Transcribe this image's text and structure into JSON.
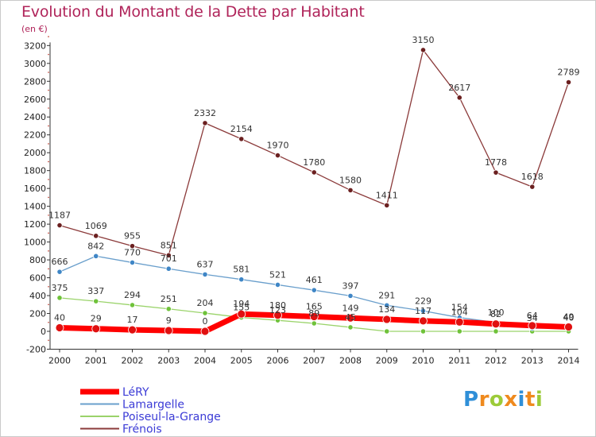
{
  "chart_data": {
    "type": "line",
    "title": "Evolution du Montant de la Dette par Habitant",
    "unit_label": "(en €)",
    "x": [
      2000,
      2001,
      2002,
      2003,
      2004,
      2005,
      2006,
      2007,
      2008,
      2009,
      2010,
      2011,
      2012,
      2013,
      2014
    ],
    "y_ticks": [
      -200,
      0,
      200,
      400,
      600,
      800,
      1000,
      1200,
      1400,
      1600,
      1800,
      2000,
      2200,
      2400,
      2600,
      2800,
      3000,
      3200
    ],
    "ylim": [
      -200,
      3200
    ],
    "grid": false,
    "legend_position": "bottom-left",
    "series": [
      {
        "name": "LéRY",
        "color": "#ff0000",
        "marker": "#e01010",
        "width": 7,
        "labels": true,
        "values": [
          40,
          29,
          17,
          9,
          0,
          194,
          180,
          165,
          149,
          134,
          117,
          104,
          82,
          64,
          49
        ],
        "label_texts": [
          "40",
          "29",
          "17",
          "9",
          "0",
          "194",
          "180",
          "165",
          "149",
          "134",
          "117",
          "104",
          "82",
          "64",
          "49"
        ]
      },
      {
        "name": "Lamargelle",
        "color": "#6a9fcc",
        "marker": "#3f86c6",
        "width": 1.3,
        "labels": true,
        "values": [
          666,
          842,
          770,
          701,
          637,
          581,
          521,
          461,
          397,
          291,
          229,
          154,
          100,
          34,
          40
        ],
        "label_texts": [
          "666",
          "842",
          "770",
          "701",
          "637",
          "581",
          "521",
          "461",
          "397",
          "291",
          "229",
          "154",
          "100",
          "34",
          "40"
        ]
      },
      {
        "name": "Poiseul-la-Grange",
        "color": "#9ad36a",
        "marker": "#6fc23a",
        "width": 1.3,
        "labels": true,
        "values": [
          375,
          337,
          294,
          251,
          204,
          155,
          123,
          89,
          45,
          0,
          0,
          0,
          0,
          0,
          0
        ],
        "label_texts": [
          "375",
          "337",
          "294",
          "251",
          "204",
          "155",
          "123",
          "89",
          "45",
          "",
          "",
          "",
          "",
          "",
          ""
        ]
      },
      {
        "name": "Frénois",
        "color": "#8b3a3a",
        "marker": "#6b2020",
        "width": 1.3,
        "labels": true,
        "values": [
          1187,
          1069,
          955,
          851,
          2332,
          2154,
          1970,
          1780,
          1580,
          1411,
          3150,
          2617,
          1778,
          1618,
          2789
        ],
        "label_texts": [
          "1187",
          "1069",
          "955",
          "851",
          "2332",
          "2154",
          "1970",
          "1780",
          "1580",
          "1411",
          "3150",
          "2617",
          "1778",
          "1618",
          "2789"
        ]
      }
    ]
  },
  "logo": {
    "letters": [
      "P",
      "r",
      "o",
      "x",
      "i",
      "t",
      "i"
    ],
    "colors": [
      "#2f8fd8",
      "#ef8a1e",
      "#9ccb39",
      "#ef8a1e",
      "#2f8fd8",
      "#ef8a1e",
      "#9ccb39"
    ]
  }
}
